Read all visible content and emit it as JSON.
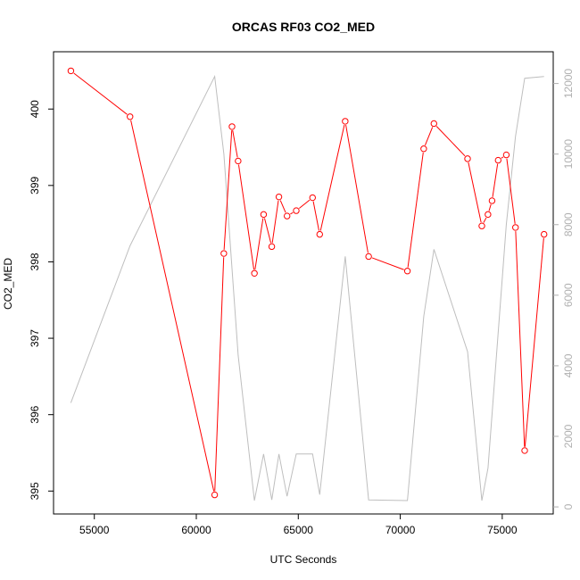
{
  "chart_data": {
    "type": "line",
    "title": "ORCAS RF03 CO2_MED",
    "xlabel": "UTC Seconds",
    "ylabel": "CO2_MED",
    "y2label": "",
    "xlim": [
      53000,
      77500
    ],
    "ylim": [
      394.7,
      400.75
    ],
    "y2lim": [
      -200,
      12900
    ],
    "x_ticks": [
      55000,
      60000,
      65000,
      70000,
      75000
    ],
    "y_ticks": [
      395,
      396,
      397,
      398,
      399,
      400
    ],
    "y2_ticks": [
      0,
      2000,
      4000,
      6000,
      8000,
      10000,
      12000
    ],
    "grid": false,
    "legend": "none",
    "colors": {
      "primary": "#ff0000",
      "secondary": "#bebebe",
      "axis": "#000000",
      "right_axis": "#b0b0b0"
    },
    "series": [
      {
        "axis": "left",
        "style": "line+points",
        "x": [
          53850,
          56750,
          60900,
          61350,
          61750,
          62050,
          62850,
          63300,
          63700,
          64050,
          64450,
          64900,
          65700,
          66050,
          67300,
          68450,
          70350,
          71150,
          71650,
          73300,
          74000,
          74300,
          74500,
          74800,
          75200,
          75650,
          76100,
          77050
        ],
        "y": [
          400.5,
          399.9,
          394.95,
          398.11,
          399.77,
          399.32,
          397.85,
          398.62,
          398.2,
          398.85,
          398.6,
          398.67,
          398.84,
          398.36,
          399.84,
          398.07,
          397.88,
          399.48,
          399.81,
          399.35,
          398.47,
          398.62,
          398.8,
          399.33,
          399.4,
          398.45,
          395.53,
          398.36
        ]
      },
      {
        "axis": "right",
        "style": "line",
        "x": [
          53850,
          56750,
          60900,
          61350,
          62050,
          62850,
          63300,
          63700,
          64050,
          64450,
          64900,
          65700,
          66050,
          67300,
          68450,
          70350,
          71150,
          71650,
          73300,
          74000,
          74300,
          75200,
          75650,
          76100,
          77050
        ],
        "y": [
          2950,
          7400,
          12200,
          10000,
          4300,
          180,
          1500,
          200,
          1500,
          300,
          1500,
          1500,
          350,
          7100,
          200,
          180,
          5400,
          7300,
          4400,
          180,
          1100,
          8000,
          10500,
          12150,
          12200
        ]
      }
    ]
  }
}
